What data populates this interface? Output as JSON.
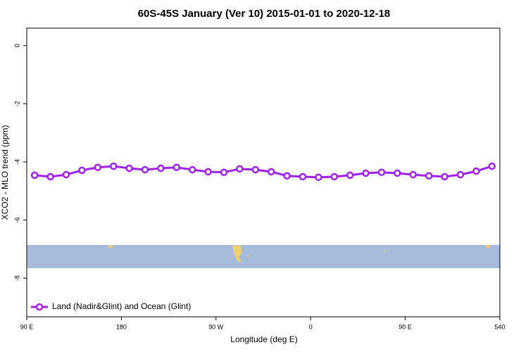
{
  "chart_data": {
    "type": "line",
    "title": "60S-45S January (Ver 10)   2015-01-01 to 2020-12-18",
    "x_label": "Longitude (deg E)",
    "y_label": "XCO2 - MLO trend (ppm)",
    "x": [
      97.5,
      112.5,
      127.5,
      142.5,
      157.5,
      172.5,
      187.5,
      202.5,
      217.5,
      232.5,
      247.5,
      262.5,
      277.5,
      292.5,
      307.5,
      322.5,
      337.5,
      352.5,
      367.5,
      382.5,
      397.5,
      412.5,
      427.5,
      442.5,
      457.5,
      472.5,
      487.5,
      502.5,
      517.5,
      532.5
    ],
    "series": [
      {
        "name": "Land (Nadir&Glint) and Ocean (Glint)",
        "color": "#a020f0",
        "values": [
          -4.46,
          -4.51,
          -4.44,
          -4.29,
          -4.19,
          -4.15,
          -4.22,
          -4.27,
          -4.22,
          -4.19,
          -4.27,
          -4.34,
          -4.36,
          -4.24,
          -4.27,
          -4.34,
          -4.48,
          -4.51,
          -4.53,
          -4.51,
          -4.46,
          -4.39,
          -4.36,
          -4.39,
          -4.44,
          -4.48,
          -4.51,
          -4.44,
          -4.32,
          -4.15
        ]
      }
    ],
    "xlim": [
      90,
      540
    ],
    "ylim": [
      -9.33,
      0.6
    ],
    "xticks": [
      {
        "value": 90,
        "label": "90 E"
      },
      180,
      {
        "value": 270,
        "label": "90 W"
      },
      {
        "value": 360,
        "label": "0"
      },
      {
        "value": 450,
        "label": "90 E"
      },
      540
    ],
    "yticks": [
      0,
      -2,
      -4,
      -6,
      -8
    ],
    "legend": "bottom-left"
  }
}
